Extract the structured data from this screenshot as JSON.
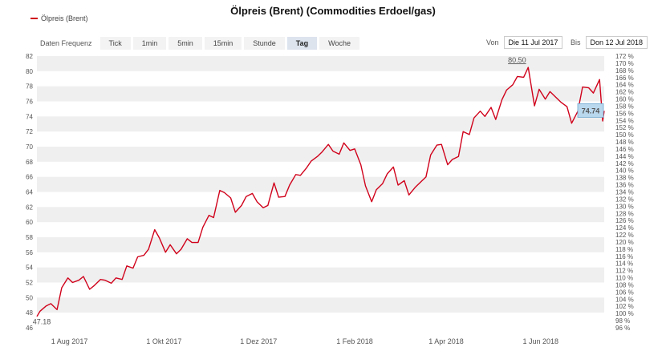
{
  "title": "Ölpreis (Brent) (Commodities Erdoel/gas)",
  "legend": {
    "label": "Ölpreis (Brent)"
  },
  "toolbar": {
    "label": "Daten Frequenz",
    "options": [
      "Tick",
      "1min",
      "5min",
      "15min",
      "Stunde",
      "Tag",
      "Woche"
    ],
    "active": "Tag"
  },
  "range": {
    "from_label": "Von",
    "from_value": "Die 11 Jul 2017",
    "to_label": "Bis",
    "to_value": "Don 12 Jul 2018"
  },
  "colors": {
    "line": "#d0021b",
    "band": "#efefef",
    "tooltip": "#b9d8ee"
  },
  "annotations": {
    "high": "80.50",
    "low": "47.18",
    "current": "74.74"
  },
  "chart_data": {
    "type": "line",
    "title": "Ölpreis (Brent) (Commodities Erdoel/gas)",
    "series_name": "Ölpreis (Brent)",
    "ylim": [
      46,
      82
    ],
    "y_ticks": [
      "82",
      "80",
      "78",
      "76",
      "74",
      "72",
      "70",
      "68",
      "66",
      "64",
      "62",
      "60",
      "58",
      "56",
      "54",
      "52",
      "50",
      "48",
      "46"
    ],
    "y2_ticks": [
      "172 %",
      "170 %",
      "168 %",
      "166 %",
      "164 %",
      "162 %",
      "160 %",
      "158 %",
      "156 %",
      "154 %",
      "152 %",
      "150 %",
      "148 %",
      "146 %",
      "144 %",
      "142 %",
      "140 %",
      "138 %",
      "136 %",
      "134 %",
      "132 %",
      "130 %",
      "128 %",
      "126 %",
      "124 %",
      "122 %",
      "120 %",
      "118 %",
      "116 %",
      "114 %",
      "112 %",
      "110 %",
      "108 %",
      "106 %",
      "104 %",
      "102 %",
      "100 %",
      "98 %",
      "96 %"
    ],
    "x_ticks": [
      {
        "date": "2017-08-01",
        "label": "1 Aug 2017"
      },
      {
        "date": "2017-10-01",
        "label": "1 Okt 2017"
      },
      {
        "date": "2017-12-01",
        "label": "1 Dez 2017"
      },
      {
        "date": "2018-02-01",
        "label": "1 Feb 2018"
      },
      {
        "date": "2018-04-01",
        "label": "1 Apr 2018"
      },
      {
        "date": "2018-06-01",
        "label": "1 Jun 2018"
      }
    ],
    "x_range": [
      "2017-07-11",
      "2018-07-12"
    ],
    "points": [
      [
        "2017-07-11",
        47.5
      ],
      [
        "2017-07-13",
        48.2
      ],
      [
        "2017-07-17",
        48.9
      ],
      [
        "2017-07-20",
        49.2
      ],
      [
        "2017-07-24",
        48.4
      ],
      [
        "2017-07-27",
        51.3
      ],
      [
        "2017-07-31",
        52.6
      ],
      [
        "2017-08-03",
        52.0
      ],
      [
        "2017-08-07",
        52.3
      ],
      [
        "2017-08-10",
        52.8
      ],
      [
        "2017-08-14",
        51.1
      ],
      [
        "2017-08-17",
        51.6
      ],
      [
        "2017-08-21",
        52.4
      ],
      [
        "2017-08-24",
        52.3
      ],
      [
        "2017-08-28",
        51.9
      ],
      [
        "2017-08-31",
        52.6
      ],
      [
        "2017-09-04",
        52.4
      ],
      [
        "2017-09-07",
        54.2
      ],
      [
        "2017-09-11",
        53.9
      ],
      [
        "2017-09-14",
        55.4
      ],
      [
        "2017-09-18",
        55.6
      ],
      [
        "2017-09-21",
        56.4
      ],
      [
        "2017-09-25",
        59.0
      ],
      [
        "2017-09-28",
        57.9
      ],
      [
        "2017-10-02",
        56.0
      ],
      [
        "2017-10-05",
        57.0
      ],
      [
        "2017-10-09",
        55.8
      ],
      [
        "2017-10-12",
        56.4
      ],
      [
        "2017-10-16",
        57.8
      ],
      [
        "2017-10-19",
        57.3
      ],
      [
        "2017-10-23",
        57.3
      ],
      [
        "2017-10-26",
        59.3
      ],
      [
        "2017-10-30",
        60.9
      ],
      [
        "2017-11-02",
        60.6
      ],
      [
        "2017-11-06",
        64.2
      ],
      [
        "2017-11-09",
        63.9
      ],
      [
        "2017-11-13",
        63.2
      ],
      [
        "2017-11-16",
        61.3
      ],
      [
        "2017-11-20",
        62.2
      ],
      [
        "2017-11-23",
        63.4
      ],
      [
        "2017-11-27",
        63.8
      ],
      [
        "2017-11-30",
        62.7
      ],
      [
        "2017-12-04",
        61.9
      ],
      [
        "2017-12-07",
        62.2
      ],
      [
        "2017-12-11",
        65.2
      ],
      [
        "2017-12-14",
        63.3
      ],
      [
        "2017-12-18",
        63.4
      ],
      [
        "2017-12-21",
        64.9
      ],
      [
        "2017-12-25",
        66.3
      ],
      [
        "2017-12-28",
        66.2
      ],
      [
        "2018-01-01",
        67.2
      ],
      [
        "2018-01-04",
        68.1
      ],
      [
        "2018-01-08",
        68.7
      ],
      [
        "2018-01-11",
        69.3
      ],
      [
        "2018-01-15",
        70.3
      ],
      [
        "2018-01-18",
        69.4
      ],
      [
        "2018-01-22",
        69.0
      ],
      [
        "2018-01-25",
        70.5
      ],
      [
        "2018-01-29",
        69.5
      ],
      [
        "2018-02-01",
        69.7
      ],
      [
        "2018-02-05",
        67.6
      ],
      [
        "2018-02-08",
        64.8
      ],
      [
        "2018-02-12",
        62.7
      ],
      [
        "2018-02-15",
        64.3
      ],
      [
        "2018-02-19",
        65.1
      ],
      [
        "2018-02-22",
        66.4
      ],
      [
        "2018-02-26",
        67.3
      ],
      [
        "2018-03-01",
        64.9
      ],
      [
        "2018-03-05",
        65.5
      ],
      [
        "2018-03-08",
        63.6
      ],
      [
        "2018-03-12",
        64.6
      ],
      [
        "2018-03-15",
        65.2
      ],
      [
        "2018-03-19",
        66.0
      ],
      [
        "2018-03-22",
        68.9
      ],
      [
        "2018-03-26",
        70.2
      ],
      [
        "2018-03-29",
        70.3
      ],
      [
        "2018-04-02",
        67.6
      ],
      [
        "2018-04-05",
        68.3
      ],
      [
        "2018-04-09",
        68.7
      ],
      [
        "2018-04-12",
        72.0
      ],
      [
        "2018-04-16",
        71.6
      ],
      [
        "2018-04-19",
        73.8
      ],
      [
        "2018-04-23",
        74.7
      ],
      [
        "2018-04-26",
        74.0
      ],
      [
        "2018-04-30",
        75.2
      ],
      [
        "2018-05-03",
        73.6
      ],
      [
        "2018-05-07",
        76.2
      ],
      [
        "2018-05-10",
        77.5
      ],
      [
        "2018-05-14",
        78.2
      ],
      [
        "2018-05-17",
        79.3
      ],
      [
        "2018-05-21",
        79.2
      ],
      [
        "2018-05-24",
        80.5
      ],
      [
        "2018-05-28",
        75.4
      ],
      [
        "2018-05-31",
        77.6
      ],
      [
        "2018-06-04",
        76.3
      ],
      [
        "2018-06-07",
        77.3
      ],
      [
        "2018-06-11",
        76.5
      ],
      [
        "2018-06-14",
        75.9
      ],
      [
        "2018-06-18",
        75.3
      ],
      [
        "2018-06-21",
        73.1
      ],
      [
        "2018-06-25",
        74.7
      ],
      [
        "2018-06-28",
        77.9
      ],
      [
        "2018-07-02",
        77.8
      ],
      [
        "2018-07-05",
        77.1
      ],
      [
        "2018-07-09",
        78.9
      ],
      [
        "2018-07-11",
        73.4
      ],
      [
        "2018-07-12",
        74.74
      ]
    ],
    "grid": true
  }
}
